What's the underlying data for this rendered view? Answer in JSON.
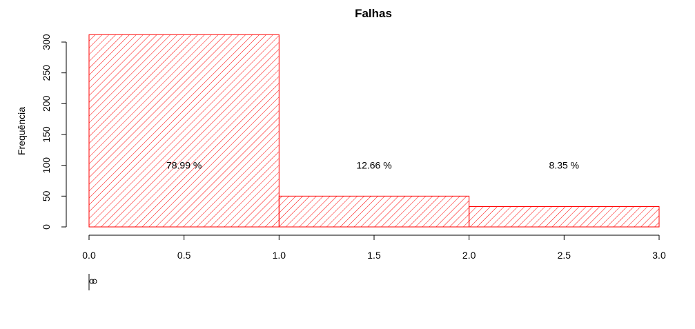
{
  "chart_data": {
    "type": "bar",
    "title": "Falhas",
    "xlabel": "",
    "ylabel": "Frequência",
    "bins": [
      {
        "x_start": 0,
        "x_end": 1,
        "value": 312,
        "label": "78.99 %"
      },
      {
        "x_start": 1,
        "x_end": 2,
        "value": 50,
        "label": "12.66 %"
      },
      {
        "x_start": 2,
        "x_end": 3,
        "value": 33,
        "label": "8.35 %"
      }
    ],
    "xlim": [
      0,
      3
    ],
    "ylim": [
      0,
      312
    ],
    "x_ticks": [
      "0.0",
      "0.5",
      "1.0",
      "1.5",
      "2.0",
      "2.5",
      "3.0"
    ],
    "y_ticks": [
      "0",
      "50",
      "100",
      "150",
      "200",
      "250",
      "300"
    ],
    "bar_fill": "hatched",
    "bar_color": "#ff0000",
    "grid": false,
    "legend": "none"
  }
}
